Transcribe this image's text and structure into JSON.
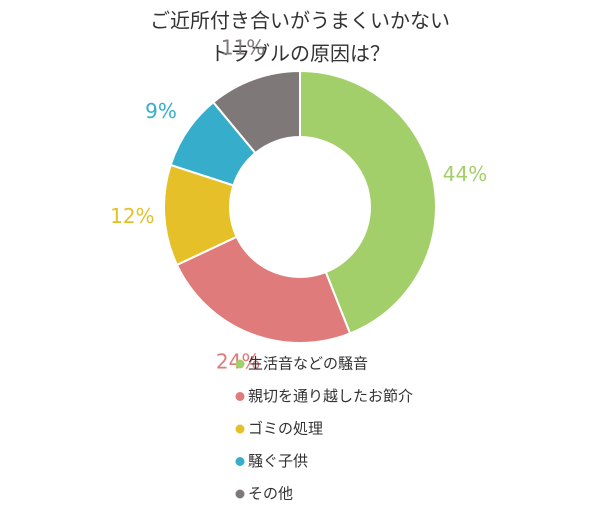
{
  "chart_data": {
    "type": "donut",
    "title": [
      "ご近所付き合いがうまくいかない",
      "トラブルの原因は？"
    ],
    "categories": [
      "生活音などの騒音",
      "親切を通り越したお節介",
      "ゴミの処理",
      "騒ぐ子供",
      "その他"
    ],
    "values": [
      44,
      24,
      12,
      9,
      11
    ],
    "value_labels": [
      "44%",
      "24%",
      "12%",
      "9%",
      "11%"
    ],
    "colors": [
      "#a3cf6a",
      "#e07b7b",
      "#e6c029",
      "#36aecb",
      "#7f7878"
    ],
    "legend": "bottom"
  }
}
